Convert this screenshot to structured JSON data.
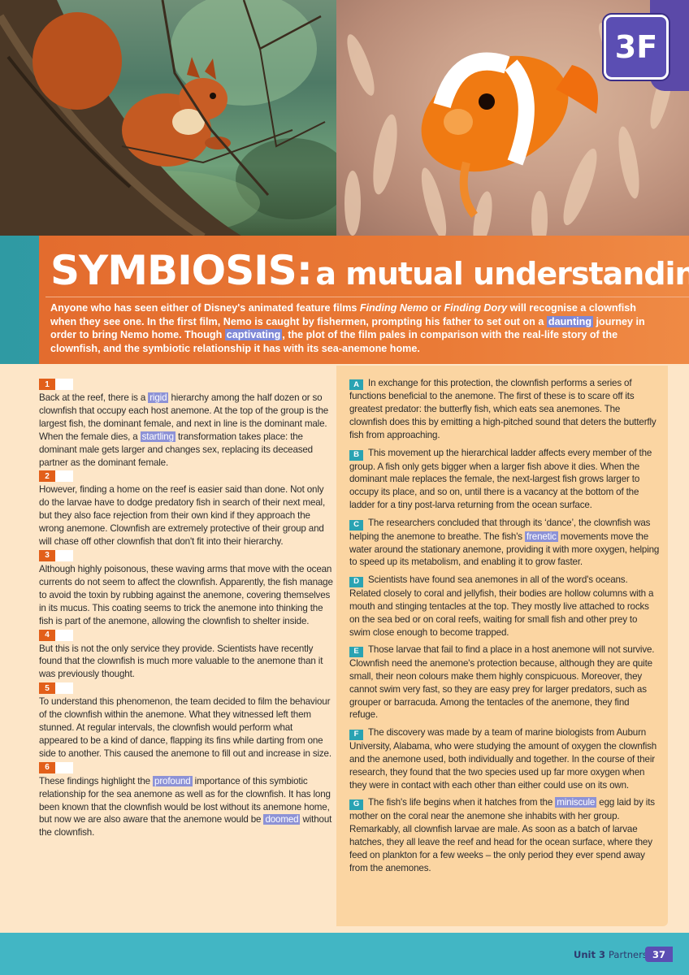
{
  "unit_badge": "3F",
  "title": {
    "main": "SYMBIOSIS:",
    "sub": "a mutual understanding"
  },
  "intro": [
    {
      "t": "Anyone who has seen either of Disney's animated feature films "
    },
    {
      "t": "Finding Nemo",
      "i": true
    },
    {
      "t": " or "
    },
    {
      "t": "Finding Dory",
      "i": true
    },
    {
      "t": " will recognise a clownfish when they see one. In the first film, Nemo is caught by fishermen, prompting his father to set out on a "
    },
    {
      "t": "daunting",
      "h": true
    },
    {
      "t": " journey in order to bring Nemo home. Though "
    },
    {
      "t": "captivating",
      "h": true
    },
    {
      "t": ", the plot of the film pales in comparison with the real-life story of the clownfish, and the symbiotic relationship it has with its sea-anemone home."
    }
  ],
  "left_paragraphs": [
    {
      "num": "1",
      "parts": [
        {
          "t": "Back at the reef, there is a "
        },
        {
          "t": "rigid",
          "h": true
        },
        {
          "t": " hierarchy among the half dozen or so clownfish that occupy each host anemone. At the top of the group is the largest fish, the dominant female, and next in line is the dominant male. When the female dies, a "
        },
        {
          "t": "startling",
          "h": true
        },
        {
          "t": " transformation takes place: the dominant male gets larger and changes sex, replacing its deceased partner as the dominant female."
        }
      ]
    },
    {
      "num": "2",
      "parts": [
        {
          "t": "However, finding a home on the reef is easier said than done. Not only do the larvae have to dodge predatory fish in search of their next meal, but they also face rejection from their own kind if they approach the wrong anemone. Clownfish are extremely protective of their group and will chase off other clownfish that don't fit into their hierarchy."
        }
      ]
    },
    {
      "num": "3",
      "parts": [
        {
          "t": "Although highly poisonous, these waving arms that move with the ocean currents do not seem to affect the clownfish. Apparently, the fish manage to avoid the toxin by rubbing against the anemone, covering themselves in its mucus. This coating seems to trick the anemone into thinking the fish is part of the anemone, allowing the clownfish to shelter inside."
        }
      ]
    },
    {
      "num": "4",
      "parts": [
        {
          "t": "But this is not the only service they provide. Scientists have recently found that the clownfish is much more valuable to the anemone than it was previously thought."
        }
      ]
    },
    {
      "num": "5",
      "parts": [
        {
          "t": "To understand this phenomenon, the team decided to film the behaviour of the clownfish within the anemone. What they witnessed left them stunned. At regular intervals, the clownfish would perform what appeared to be a kind of dance, flapping its fins while darting from one side to another. This caused the anemone to fill out and increase in size."
        }
      ]
    },
    {
      "num": "6",
      "parts": [
        {
          "t": "These findings highlight the "
        },
        {
          "t": "profound",
          "h": true
        },
        {
          "t": " importance of this symbiotic relationship for the sea anemone as well as for the clownfish. It has long been known that the clownfish would be lost without its anemone home, but now we are also aware that the anemone would be "
        },
        {
          "t": "doomed",
          "h": true
        },
        {
          "t": " without the clownfish."
        }
      ]
    }
  ],
  "right_paragraphs": [
    {
      "letter": "A",
      "parts": [
        {
          "t": "In exchange for this protection, the clownfish performs a series of functions beneficial to the anemone. The first of these is to scare off its greatest predator: the butterfly fish, which eats sea anemones. The clownfish does this by emitting a high-pitched sound that deters the butterfly fish from approaching."
        }
      ]
    },
    {
      "letter": "B",
      "parts": [
        {
          "t": "This movement up the hierarchical ladder affects every member of the group. A fish only gets bigger when a larger fish above it dies. When the dominant male replaces the female, the next-largest fish grows larger to occupy its place, and so on, until there is a vacancy at the bottom of the ladder for a tiny post-larva returning from the ocean surface."
        }
      ]
    },
    {
      "letter": "C",
      "parts": [
        {
          "t": "The researchers concluded that through its ‘dance’, the clownfish was helping the anemone to breathe. The fish's "
        },
        {
          "t": "frenetic",
          "h": true
        },
        {
          "t": " movements move the water around the stationary anemone, providing it with more oxygen, helping to speed up its metabolism, and enabling it to grow faster."
        }
      ]
    },
    {
      "letter": "D",
      "parts": [
        {
          "t": "Scientists have found sea anemones in all of the word's oceans. Related closely to coral and jellyfish, their bodies are hollow columns with a mouth and stinging tentacles at the top. They mostly live attached to rocks on the sea bed or on coral reefs, waiting for small fish and other prey to swim close enough to become trapped."
        }
      ]
    },
    {
      "letter": "E",
      "parts": [
        {
          "t": "Those larvae that fail to find a place in a host anemone will not survive. Clownfish need the anemone's protection because, although they are quite small, their neon colours make them highly conspicuous. Moreover, they cannot swim very fast, so they are easy prey for larger predators, such as grouper or barracuda. Among the tentacles of the anemone, they find refuge."
        }
      ]
    },
    {
      "letter": "F",
      "parts": [
        {
          "t": "The discovery was made by a team of marine biologists from Auburn University, Alabama, who were studying the amount of oxygen the clownfish and the anemone used, both individually and together. In the course of their research, they found that the two species used up far more oxygen when they were in contact with each other than either could use on its own."
        }
      ]
    },
    {
      "letter": "G",
      "parts": [
        {
          "t": "The fish's life begins when it hatches from the "
        },
        {
          "t": "miniscule",
          "h": true
        },
        {
          "t": " egg laid by its mother on the coral near the anemone she inhabits with her group. Remarkably, all clownfish larvae are male. As soon as a batch of larvae hatches, they all leave the reef and head for the ocean surface, where they feed on plankton for a few weeks – the only period they ever spend away from the anemones."
        }
      ]
    }
  ],
  "footer": {
    "unit": "Unit 3",
    "section": "Partners",
    "page": "37"
  },
  "colors": {
    "orange": "#e36c2e",
    "teal": "#42b6c4",
    "purple": "#5b4eb3",
    "highlight": "#8d92d6"
  }
}
